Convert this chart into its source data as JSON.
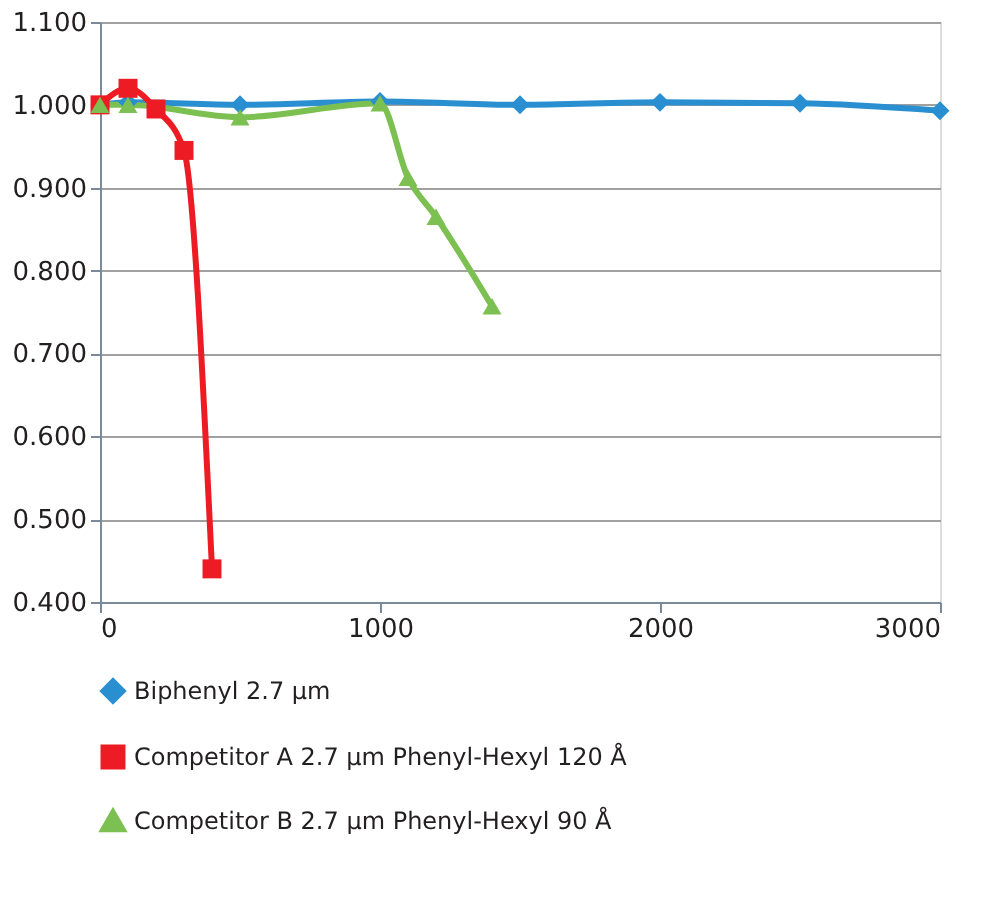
{
  "chart_data": {
    "type": "line",
    "xlim": [
      0,
      3000
    ],
    "xticks": [
      0,
      {
        "value": 1000,
        "label": "1000"
      },
      {
        "value": 2000,
        "label": "2000"
      },
      {
        "value": 3000,
        "label": "3000"
      }
    ],
    "ylim": [
      0.4,
      1.1
    ],
    "yticks": [
      {
        "value": 0.4,
        "label": "0.400"
      },
      {
        "value": 0.5,
        "label": "0.500"
      },
      {
        "value": 0.6,
        "label": "0.600"
      },
      {
        "value": 0.7,
        "label": "0.700"
      },
      {
        "value": 0.8,
        "label": "0.800"
      },
      {
        "value": 0.9,
        "label": "0.900"
      },
      {
        "value": 1.0,
        "label": "1.000"
      },
      {
        "value": 1.1,
        "label": "1.100"
      }
    ],
    "grid": "y",
    "legend": "bottom",
    "line_style": "solid",
    "series": [
      {
        "name": "Biphenyl 2.7 µm",
        "color": "#2a8fd0",
        "marker": "diamond",
        "x": [
          0,
          100,
          500,
          1000,
          1500,
          2000,
          2500,
          3000
        ],
        "values": [
          1.0,
          1.003,
          1.0,
          1.004,
          1.0,
          1.003,
          1.002,
          0.993
        ]
      },
      {
        "name": "Competitor A 2.7 µm Phenyl-Hexyl 120 Å",
        "color": "#ed1c24",
        "marker": "square",
        "x": [
          0,
          100,
          200,
          300,
          400
        ],
        "values": [
          1.0,
          1.02,
          0.995,
          0.945,
          0.44
        ]
      },
      {
        "name": "Competitor B 2.7 µm Phenyl-Hexyl 90 Å",
        "color": "#7dc052",
        "marker": "triangle",
        "x": [
          0,
          100,
          500,
          1000,
          1100,
          1200,
          1400
        ],
        "values": [
          1.0,
          1.0,
          0.985,
          1.002,
          0.912,
          0.865,
          0.757
        ]
      }
    ]
  }
}
